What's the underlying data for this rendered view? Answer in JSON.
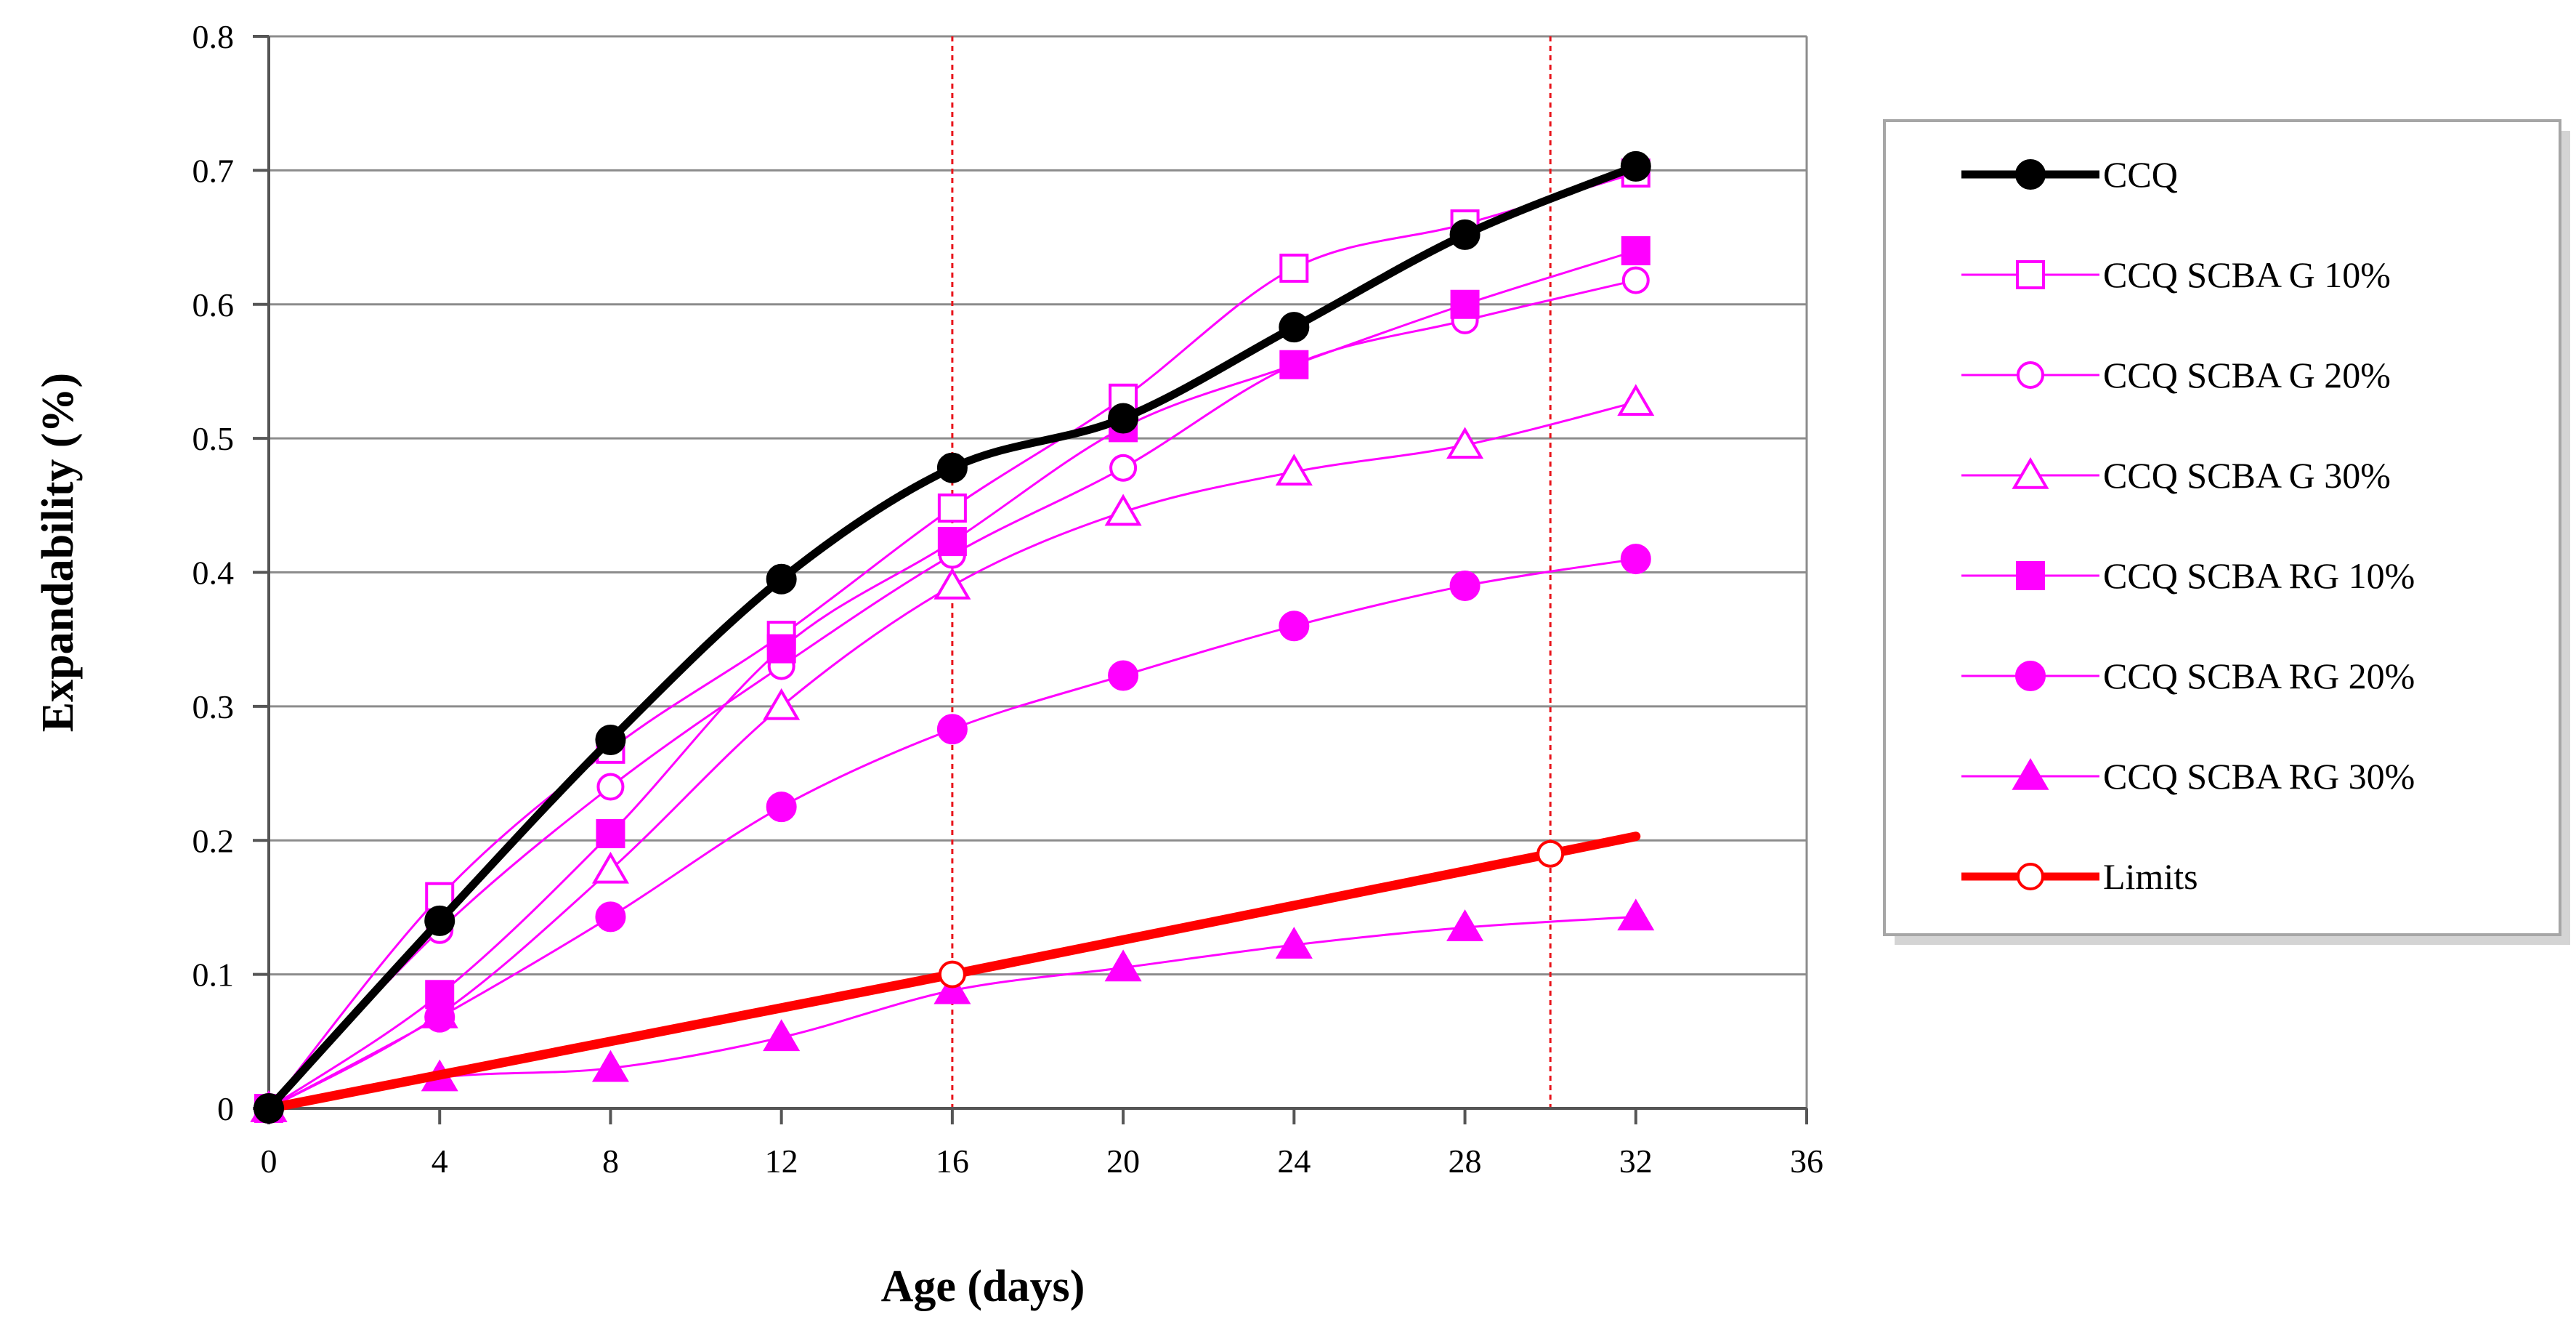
{
  "chart_data": {
    "type": "line",
    "title": "",
    "xlabel": "Age (days)",
    "ylabel": "Expandability (%)",
    "xlim": [
      0,
      36
    ],
    "ylim": [
      0,
      0.8
    ],
    "xticks": [
      0,
      4,
      8,
      12,
      16,
      20,
      24,
      28,
      32,
      36
    ],
    "yticks": [
      0,
      0.1,
      0.2,
      0.3,
      0.4,
      0.5,
      0.6,
      0.7,
      0.8
    ],
    "xtick_labels": [
      "0",
      "4",
      "8",
      "12",
      "16",
      "20",
      "24",
      "28",
      "32",
      "36"
    ],
    "ytick_labels": [
      "0",
      "0.1",
      "0.2",
      "0.3",
      "0.4",
      "0.5",
      "0.6",
      "0.7",
      "0.8"
    ],
    "grid": "horizontal",
    "legend_position": "right",
    "reference_lines": [
      {
        "axis": "x",
        "value": 16,
        "style": "dotted",
        "color": "#e8141b"
      },
      {
        "axis": "x",
        "value": 30,
        "style": "dotted",
        "color": "#e8141b"
      }
    ],
    "x": [
      0,
      4,
      8,
      12,
      16,
      20,
      24,
      28,
      32
    ],
    "series": [
      {
        "name": "CCQ",
        "color": "#000000",
        "marker": "circle",
        "filled": true,
        "line": "thick",
        "x": [
          0,
          4,
          8,
          12,
          16,
          20,
          24,
          28,
          32
        ],
        "values": [
          0,
          0.14,
          0.275,
          0.395,
          0.478,
          0.515,
          0.583,
          0.652,
          0.703
        ]
      },
      {
        "name": "CCQ SCBA G 10%",
        "color": "#ff00ff",
        "marker": "square",
        "filled": false,
        "line": "thin",
        "x": [
          0,
          4,
          8,
          12,
          16,
          20,
          24,
          28,
          32
        ],
        "values": [
          0,
          0.158,
          0.268,
          0.353,
          0.448,
          0.53,
          0.627,
          0.66,
          0.698
        ]
      },
      {
        "name": "CCQ SCBA G 20%",
        "color": "#ff00ff",
        "marker": "circle",
        "filled": false,
        "line": "thin",
        "x": [
          0,
          4,
          8,
          12,
          16,
          20,
          24,
          28,
          32
        ],
        "values": [
          0,
          0.133,
          0.24,
          0.33,
          0.413,
          0.478,
          0.555,
          0.588,
          0.618
        ]
      },
      {
        "name": "CCQ SCBA G 30%",
        "color": "#ff00ff",
        "marker": "triangle",
        "filled": false,
        "line": "thin",
        "x": [
          0,
          4,
          8,
          12,
          16,
          20,
          24,
          28,
          32
        ],
        "values": [
          0,
          0.07,
          0.178,
          0.3,
          0.39,
          0.445,
          0.475,
          0.495,
          0.527
        ]
      },
      {
        "name": "CCQ SCBA RG 10%",
        "color": "#ff00ff",
        "marker": "square",
        "filled": true,
        "line": "thin",
        "x": [
          0,
          4,
          8,
          12,
          16,
          20,
          24,
          28,
          32
        ],
        "values": [
          0,
          0.085,
          0.205,
          0.343,
          0.423,
          0.508,
          0.555,
          0.6,
          0.64
        ]
      },
      {
        "name": "CCQ SCBA RG 20%",
        "color": "#ff00ff",
        "marker": "circle",
        "filled": true,
        "line": "thin",
        "x": [
          0,
          4,
          8,
          12,
          16,
          20,
          24,
          28,
          32
        ],
        "values": [
          0,
          0.068,
          0.143,
          0.225,
          0.283,
          0.323,
          0.36,
          0.39,
          0.41
        ]
      },
      {
        "name": "CCQ SCBA RG 30%",
        "color": "#ff00ff",
        "marker": "triangle",
        "filled": true,
        "line": "thin",
        "x": [
          0,
          4,
          8,
          12,
          16,
          20,
          24,
          28,
          32
        ],
        "values": [
          0,
          0.023,
          0.03,
          0.053,
          0.088,
          0.105,
          0.122,
          0.135,
          0.143
        ]
      },
      {
        "name": "Limits",
        "color": "#ff0000",
        "marker": "circle",
        "filled": false,
        "line": "thick-straight",
        "x": [
          0,
          16,
          30,
          32
        ],
        "values": [
          0,
          0.1,
          0.19,
          0.203
        ],
        "marker_x": [
          0,
          16,
          30
        ]
      }
    ]
  }
}
